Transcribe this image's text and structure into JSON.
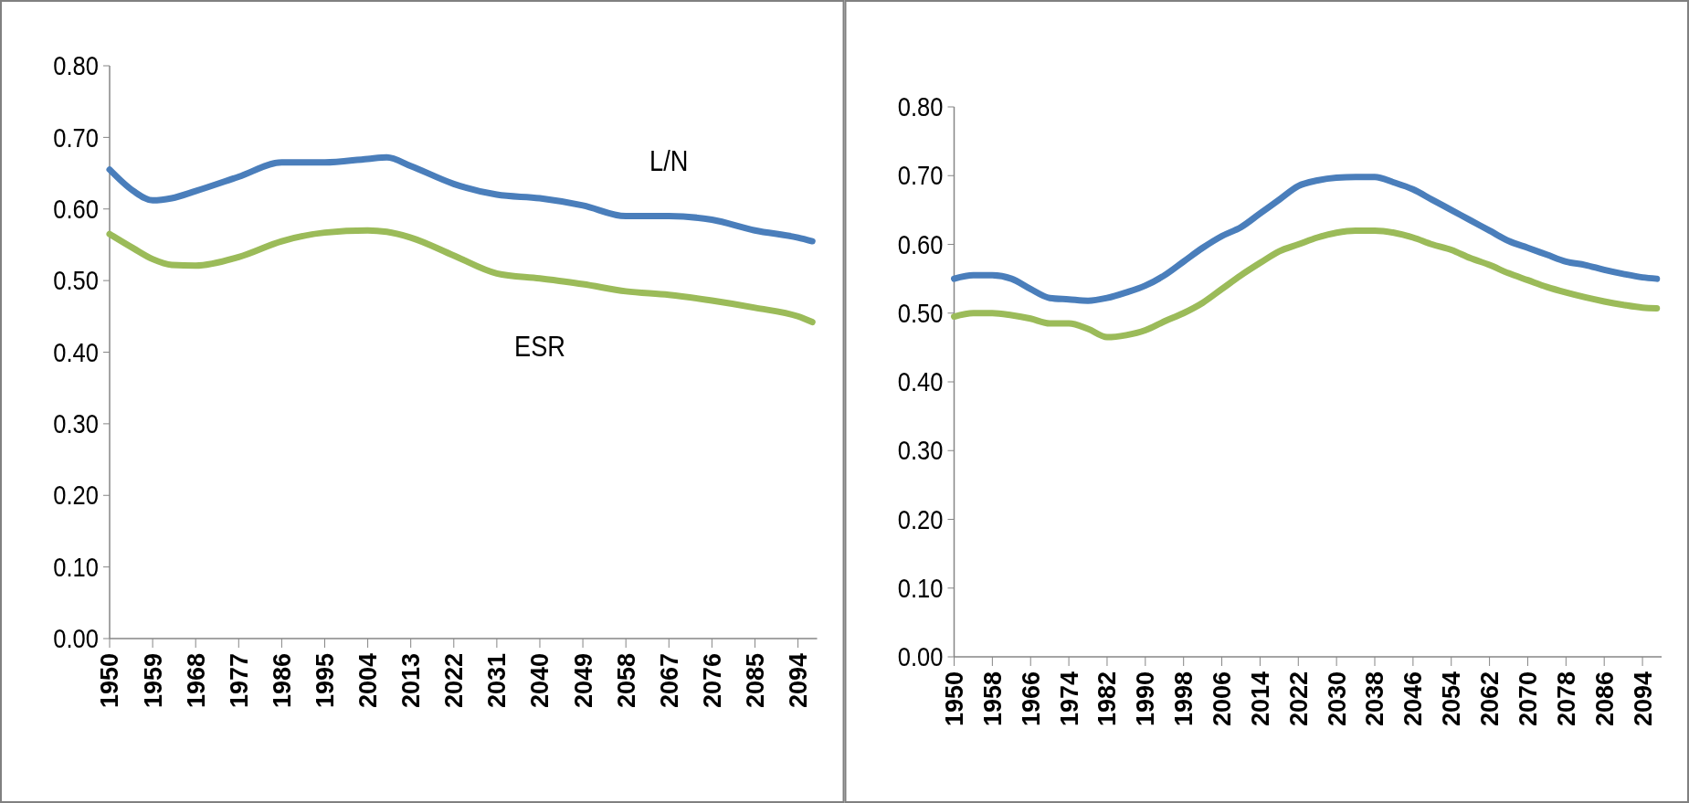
{
  "chart_data": [
    {
      "type": "line",
      "xlim": [
        1950,
        2098
      ],
      "ylim": [
        0,
        0.8
      ],
      "yticks": [
        {
          "value": 0,
          "label": "0.00"
        },
        {
          "value": 0.1,
          "label": "0.10"
        },
        {
          "value": 0.2,
          "label": "0.20"
        },
        {
          "value": 0.3,
          "label": "0.30"
        },
        {
          "value": 0.4,
          "label": "0.40"
        },
        {
          "value": 0.5,
          "label": "0.50"
        },
        {
          "value": 0.6,
          "label": "0.60"
        },
        {
          "value": 0.7,
          "label": "0.70"
        },
        {
          "value": 0.8,
          "label": "0.80"
        }
      ],
      "xticks": [
        1950,
        1959,
        1968,
        1977,
        1986,
        1995,
        2004,
        2013,
        2022,
        2031,
        2040,
        2049,
        2058,
        2067,
        2076,
        2085,
        2094
      ],
      "grid": false,
      "marker": "none",
      "line_style": "solid",
      "x": [
        1950,
        1955,
        1959,
        1963,
        1968,
        1977,
        1986,
        1995,
        2004,
        2008,
        2013,
        2022,
        2031,
        2040,
        2049,
        2058,
        2067,
        2076,
        2085,
        2094,
        2097
      ],
      "series": [
        {
          "name": "L/N",
          "color": "#4a7ebb",
          "values": [
            0.655,
            0.625,
            0.612,
            0.615,
            0.625,
            0.645,
            0.665,
            0.665,
            0.67,
            0.672,
            0.66,
            0.635,
            0.62,
            0.615,
            0.605,
            0.59,
            0.59,
            0.585,
            0.57,
            0.56,
            0.555
          ]
        },
        {
          "name": "ESR",
          "color": "#9bbb59",
          "values": [
            0.565,
            0.545,
            0.53,
            0.522,
            0.521,
            0.533,
            0.555,
            0.567,
            0.57,
            0.568,
            0.56,
            0.535,
            0.51,
            0.503,
            0.495,
            0.485,
            0.48,
            0.472,
            0.462,
            0.45,
            0.442
          ]
        }
      ]
    },
    {
      "type": "line",
      "xlim": [
        1950,
        2098
      ],
      "ylim": [
        0,
        0.8
      ],
      "yticks": [
        {
          "value": 0,
          "label": "0.00"
        },
        {
          "value": 0.1,
          "label": "0.10"
        },
        {
          "value": 0.2,
          "label": "0.20"
        },
        {
          "value": 0.3,
          "label": "0.30"
        },
        {
          "value": 0.4,
          "label": "0.40"
        },
        {
          "value": 0.5,
          "label": "0.50"
        },
        {
          "value": 0.6,
          "label": "0.60"
        },
        {
          "value": 0.7,
          "label": "0.70"
        },
        {
          "value": 0.8,
          "label": "0.80"
        }
      ],
      "xticks": [
        1950,
        1958,
        1966,
        1974,
        1982,
        1990,
        1998,
        2006,
        2014,
        2022,
        2030,
        2038,
        2046,
        2054,
        2062,
        2070,
        2078,
        2086,
        2094
      ],
      "grid": false,
      "marker": "none",
      "line_style": "solid",
      "x": [
        1950,
        1954,
        1958,
        1962,
        1966,
        1970,
        1974,
        1978,
        1982,
        1986,
        1990,
        1994,
        1998,
        2002,
        2006,
        2010,
        2014,
        2018,
        2022,
        2026,
        2030,
        2034,
        2038,
        2042,
        2046,
        2050,
        2054,
        2058,
        2062,
        2066,
        2070,
        2074,
        2078,
        2082,
        2086,
        2090,
        2094,
        2097
      ],
      "series": [
        {
          "color": "#4a7ebb",
          "values": [
            0.55,
            0.555,
            0.555,
            0.55,
            0.535,
            0.522,
            0.52,
            0.518,
            0.522,
            0.53,
            0.54,
            0.555,
            0.575,
            0.595,
            0.612,
            0.625,
            0.645,
            0.665,
            0.685,
            0.693,
            0.697,
            0.698,
            0.698,
            0.69,
            0.68,
            0.665,
            0.65,
            0.635,
            0.62,
            0.605,
            0.595,
            0.585,
            0.575,
            0.57,
            0.563,
            0.557,
            0.552,
            0.55
          ]
        },
        {
          "color": "#9bbb59",
          "values": [
            0.495,
            0.5,
            0.5,
            0.497,
            0.492,
            0.485,
            0.485,
            0.477,
            0.465,
            0.468,
            0.475,
            0.488,
            0.5,
            0.515,
            0.535,
            0.555,
            0.573,
            0.59,
            0.6,
            0.61,
            0.617,
            0.62,
            0.62,
            0.617,
            0.61,
            0.6,
            0.592,
            0.58,
            0.57,
            0.558,
            0.548,
            0.538,
            0.53,
            0.523,
            0.517,
            0.512,
            0.508,
            0.507
          ]
        }
      ]
    }
  ]
}
